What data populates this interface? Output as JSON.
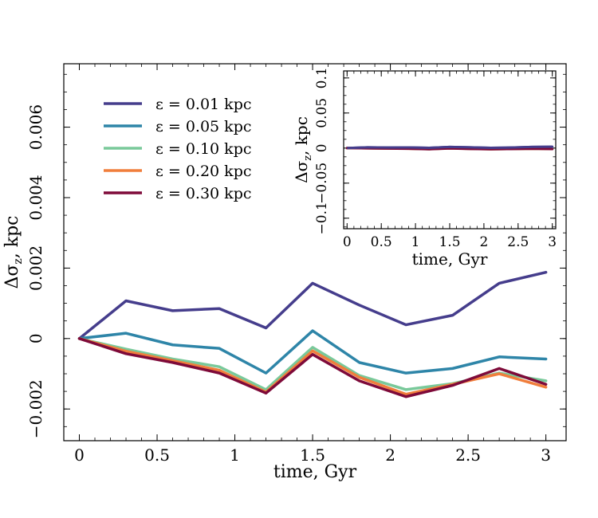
{
  "chart_data": [
    {
      "type": "line",
      "title": "",
      "xlabel": "time, Gyr",
      "ylabel": "Δσ",
      "ylabel_sub": "z",
      "ylabel_suffix": ", kpc",
      "xlim": [
        -0.1,
        3.13
      ],
      "ylim": [
        -0.0029,
        0.0078
      ],
      "xticks": [
        0,
        0.5,
        1,
        1.5,
        2,
        2.5,
        3
      ],
      "xtick_labels": [
        "0",
        "0.5",
        "1",
        "1.5",
        "2",
        "2.5",
        "3"
      ],
      "yticks": [
        -0.002,
        0,
        0.002,
        0.004,
        0.006
      ],
      "ytick_labels": [
        "−0.002",
        "0",
        "0.002",
        "0.004",
        "0.006"
      ],
      "grid": false,
      "legend_position": "top-left",
      "x": [
        0,
        0.3,
        0.6,
        0.9,
        1.2,
        1.5,
        1.8,
        2.1,
        2.4,
        2.7,
        3.0
      ],
      "series": [
        {
          "name": "ε = 0.01 kpc",
          "color": "#453d8c",
          "values": [
            0,
            0.00107,
            0.00079,
            0.00085,
            0.0003,
            0.00157,
            0.00095,
            0.00039,
            0.00066,
            0.00157,
            0.00188
          ]
        },
        {
          "name": "ε = 0.05 kpc",
          "color": "#2e85a8",
          "values": [
            0,
            0.00015,
            -0.00018,
            -0.00028,
            -0.00098,
            0.00022,
            -0.00068,
            -0.00098,
            -0.00085,
            -0.00052,
            -0.00058
          ]
        },
        {
          "name": "ε = 0.10 kpc",
          "color": "#79c99a",
          "values": [
            0,
            -0.0003,
            -0.00058,
            -0.0008,
            -0.00145,
            -0.00025,
            -0.00105,
            -0.00145,
            -0.00128,
            -0.00098,
            -0.0012
          ]
        },
        {
          "name": "ε = 0.20 kpc",
          "color": "#f07e3c",
          "values": [
            0,
            -0.00036,
            -0.00063,
            -0.0009,
            -0.00152,
            -0.00035,
            -0.0011,
            -0.00158,
            -0.0013,
            -0.001,
            -0.00138
          ]
        },
        {
          "name": "ε = 0.30 kpc",
          "color": "#7e0a39",
          "values": [
            0,
            -0.00043,
            -0.00068,
            -0.00098,
            -0.00155,
            -0.00045,
            -0.0012,
            -0.00165,
            -0.00133,
            -0.00085,
            -0.0013
          ]
        }
      ]
    },
    {
      "type": "line",
      "title": "",
      "xlabel": "time, Gyr",
      "ylabel": "Δσ",
      "ylabel_sub": "z",
      "ylabel_suffix": ", kpc",
      "xlim": [
        -0.05,
        3.05
      ],
      "ylim": [
        -0.115,
        0.11
      ],
      "xticks": [
        0,
        0.5,
        1,
        1.5,
        2,
        2.5,
        3
      ],
      "xtick_labels": [
        "0",
        "0.5",
        "1",
        "1.5",
        "2",
        "2.5",
        "3"
      ],
      "yticks": [
        -0.1,
        -0.05,
        0,
        0.05,
        0.1
      ],
      "ytick_labels": [
        "−0.1",
        "−0.05",
        "0",
        "0.05",
        "0.1"
      ],
      "grid": false,
      "x": [
        0,
        0.3,
        0.6,
        0.9,
        1.2,
        1.5,
        1.8,
        2.1,
        2.4,
        2.7,
        3.0
      ],
      "series": [
        {
          "name": "ε = 0.01 kpc",
          "color": "#453d8c",
          "values": [
            0,
            0.0011,
            0.0008,
            0.0009,
            0.0003,
            0.0016,
            0.001,
            0.0004,
            0.0007,
            0.0016,
            0.0019
          ]
        },
        {
          "name": "ε = 0.05 kpc",
          "color": "#2e85a8",
          "values": [
            0,
            0.0002,
            -0.0002,
            -0.0003,
            -0.001,
            0.0002,
            -0.0007,
            -0.001,
            -0.0009,
            -0.0005,
            -0.0006
          ]
        },
        {
          "name": "ε = 0.10 kpc",
          "color": "#79c99a",
          "values": [
            0,
            -0.0003,
            -0.0006,
            -0.0008,
            -0.0015,
            -0.0003,
            -0.0011,
            -0.0015,
            -0.0013,
            -0.001,
            -0.0012
          ]
        },
        {
          "name": "ε = 0.20 kpc",
          "color": "#f07e3c",
          "values": [
            0,
            -0.0004,
            -0.0006,
            -0.0009,
            -0.0015,
            -0.0004,
            -0.0011,
            -0.0016,
            -0.0013,
            -0.001,
            -0.0014
          ]
        },
        {
          "name": "ε = 0.30 kpc",
          "color": "#7e0a39",
          "values": [
            0,
            -0.0004,
            -0.0007,
            -0.001,
            -0.0016,
            -0.0005,
            -0.0012,
            -0.0017,
            -0.0013,
            -0.0009,
            -0.0013
          ]
        }
      ]
    }
  ]
}
